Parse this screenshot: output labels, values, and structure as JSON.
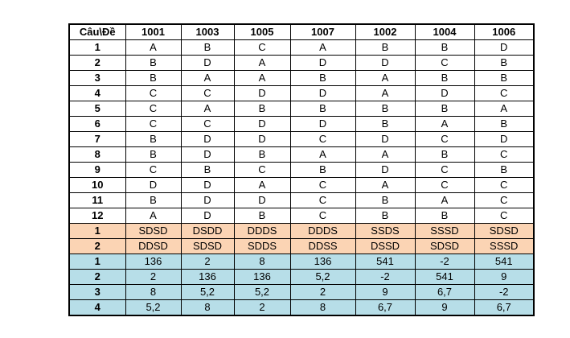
{
  "table": {
    "header": [
      "Câu\\Đề",
      "1001",
      "1003",
      "1005",
      "1007",
      "1002",
      "1004",
      "1006"
    ],
    "rows": [
      [
        "1",
        "A",
        "B",
        "C",
        "A",
        "B",
        "B",
        "D"
      ],
      [
        "2",
        "B",
        "D",
        "A",
        "D",
        "D",
        "C",
        "B"
      ],
      [
        "3",
        "B",
        "A",
        "A",
        "B",
        "A",
        "B",
        "B"
      ],
      [
        "4",
        "C",
        "C",
        "D",
        "D",
        "A",
        "D",
        "C"
      ],
      [
        "5",
        "C",
        "A",
        "B",
        "B",
        "B",
        "B",
        "A"
      ],
      [
        "6",
        "C",
        "C",
        "D",
        "D",
        "B",
        "A",
        "B"
      ],
      [
        "7",
        "B",
        "D",
        "D",
        "C",
        "D",
        "C",
        "D"
      ],
      [
        "8",
        "B",
        "D",
        "B",
        "A",
        "A",
        "B",
        "C"
      ],
      [
        "9",
        "C",
        "B",
        "C",
        "B",
        "D",
        "C",
        "B"
      ],
      [
        "10",
        "D",
        "D",
        "A",
        "C",
        "A",
        "C",
        "C"
      ],
      [
        "11",
        "B",
        "D",
        "D",
        "C",
        "B",
        "A",
        "C"
      ],
      [
        "12",
        "A",
        "D",
        "B",
        "C",
        "B",
        "B",
        "C"
      ],
      [
        "1",
        "SDSD",
        "DSDD",
        "DDDS",
        "DDDS",
        "SSDS",
        "SSSD",
        "SDSD"
      ],
      [
        "2",
        "DDSD",
        "SDSD",
        "SDDS",
        "DDSS",
        "DSSD",
        "SDSD",
        "SSSD"
      ],
      [
        "1",
        "136",
        "2",
        "8",
        "136",
        "541",
        "-2",
        "541"
      ],
      [
        "2",
        "2",
        "136",
        "136",
        "5,2",
        "-2",
        "541",
        "9"
      ],
      [
        "3",
        "8",
        "5,2",
        "5,2",
        "2",
        "9",
        "6,7",
        "-2"
      ],
      [
        "4",
        "5,2",
        "8",
        "2",
        "8",
        "6,7",
        "9",
        "6,7"
      ]
    ]
  }
}
